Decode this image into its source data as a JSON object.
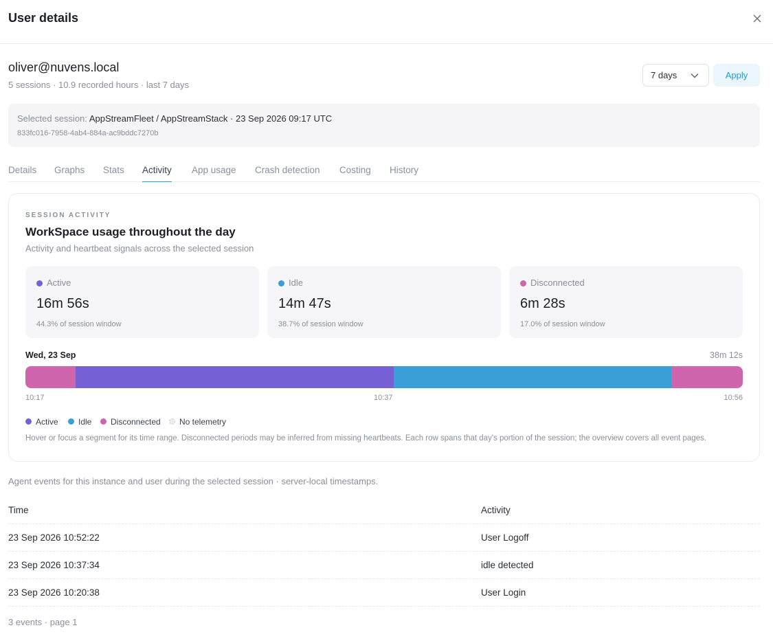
{
  "header": {
    "title": "User details"
  },
  "user": {
    "email": "oliver@nuvens.local",
    "meta": "5 sessions · 10.9 recorded hours · last 7 days"
  },
  "controls": {
    "range_value": "7 days",
    "apply_label": "Apply"
  },
  "session": {
    "label": "Selected session:",
    "value": "AppStreamFleet / AppStreamStack · 23 Sep 2026 09:17 UTC",
    "id": "833fc016-7958-4ab4-884a-ac9bddc7270b"
  },
  "tabs": [
    {
      "label": "Details"
    },
    {
      "label": "Graphs"
    },
    {
      "label": "Stats"
    },
    {
      "label": "Activity"
    },
    {
      "label": "App usage"
    },
    {
      "label": "Crash detection"
    },
    {
      "label": "Costing"
    },
    {
      "label": "History"
    }
  ],
  "active_tab": "Activity",
  "activity": {
    "eyebrow": "SESSION ACTIVITY",
    "title": "WorkSpace usage throughout the day",
    "subtitle": "Activity and heartbeat signals across the selected session",
    "stats": [
      {
        "label": "Active",
        "value": "16m 56s",
        "pct": "44.3% of session window",
        "color": "#7560d6"
      },
      {
        "label": "Idle",
        "value": "14m 47s",
        "pct": "38.7% of session window",
        "color": "#3a9fd9"
      },
      {
        "label": "Disconnected",
        "value": "6m 28s",
        "pct": "17.0% of session window",
        "color": "#cf66ad"
      }
    ],
    "day": "Wed, 23 Sep",
    "day_total": "38m 12s",
    "segments": [
      {
        "state": "Disconnected",
        "start_frac": 0.0,
        "end_frac": 0.07
      },
      {
        "state": "Active",
        "start_frac": 0.07,
        "end_frac": 0.513
      },
      {
        "state": "Idle",
        "start_frac": 0.513,
        "end_frac": 0.9
      },
      {
        "state": "Disconnected",
        "start_frac": 0.9,
        "end_frac": 1.0
      }
    ],
    "ticks": [
      "10:17",
      "10:37",
      "10:56"
    ],
    "legend": [
      {
        "label": "Active",
        "color": "#7560d6"
      },
      {
        "label": "Idle",
        "color": "#3a9fd9"
      },
      {
        "label": "Disconnected",
        "color": "#cf66ad"
      },
      {
        "label": "No telemetry",
        "color": "#ececf0"
      }
    ],
    "hint": "Hover or focus a segment for its time range. Disconnected periods may be inferred from missing heartbeats. Each row spans that day's portion of the session; the overview covers all event pages."
  },
  "events": {
    "description": "Agent events for this instance and user during the selected session · server-local timestamps.",
    "columns": [
      "Time",
      "Activity"
    ],
    "rows": [
      {
        "time": "23 Sep 2026 10:52:22",
        "activity": "User Logoff"
      },
      {
        "time": "23 Sep 2026 10:37:34",
        "activity": "idle detected"
      },
      {
        "time": "23 Sep 2026 10:20:38",
        "activity": "User Login"
      }
    ],
    "footer": "3 events · page 1"
  }
}
